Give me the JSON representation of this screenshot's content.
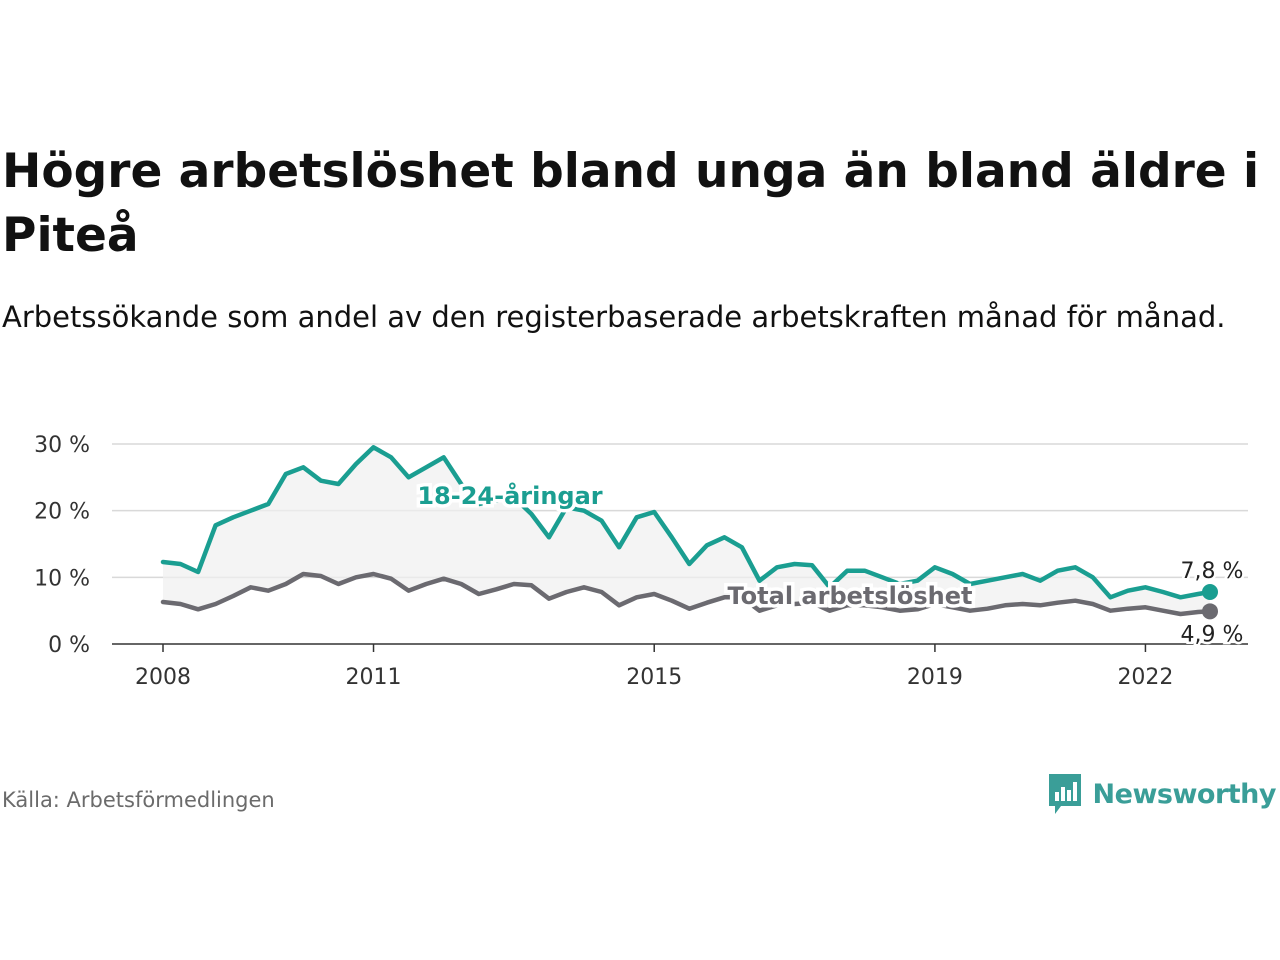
{
  "title": "Högre arbetslöshet bland unga än bland äldre i Piteå",
  "subtitle": "Arbetssökande som andel av den registerbaserade arbetskraften månad för månad.",
  "source": "Källa: Arbetsförmedlingen",
  "brand": {
    "name": "Newsworthy",
    "icon": "newsworthy-logo-icon",
    "color": "#3a9e98"
  },
  "chart_data": {
    "type": "line",
    "title": "Högre arbetslöshet bland unga än bland äldre i Piteå",
    "xlabel": "",
    "ylabel": "",
    "xlim": [
      2008.0,
      2023.5
    ],
    "ylim": [
      0,
      30
    ],
    "y_ticks": [
      0,
      10,
      20,
      30
    ],
    "y_tick_labels": [
      "0 %",
      "10 %",
      "20 %",
      "30 %"
    ],
    "x_ticks": [
      2008,
      2011,
      2015,
      2019,
      2022
    ],
    "x_tick_labels": [
      "2008",
      "2011",
      "2015",
      "2019",
      "2022"
    ],
    "grid": true,
    "legend": "inline labels",
    "shaded_area_between_series": true,
    "series": [
      {
        "name": "18-24-åringar",
        "color": "#1a9e91",
        "end_label": "7,8 %",
        "x": [
          2008.0,
          2008.25,
          2008.5,
          2008.75,
          2009.0,
          2009.25,
          2009.5,
          2009.75,
          2010.0,
          2010.25,
          2010.5,
          2010.75,
          2011.0,
          2011.25,
          2011.5,
          2011.75,
          2012.0,
          2012.25,
          2012.5,
          2012.75,
          2013.0,
          2013.25,
          2013.5,
          2013.75,
          2014.0,
          2014.25,
          2014.5,
          2014.75,
          2015.0,
          2015.25,
          2015.5,
          2015.75,
          2016.0,
          2016.25,
          2016.5,
          2016.75,
          2017.0,
          2017.25,
          2017.5,
          2017.75,
          2018.0,
          2018.25,
          2018.5,
          2018.75,
          2019.0,
          2019.25,
          2019.5,
          2019.75,
          2020.0,
          2020.25,
          2020.5,
          2020.75,
          2021.0,
          2021.25,
          2021.5,
          2021.75,
          2022.0,
          2022.25,
          2022.5,
          2022.75,
          2022.92
        ],
        "values": [
          12.3,
          12.0,
          10.8,
          17.8,
          19.0,
          20.0,
          21.0,
          25.5,
          26.5,
          24.5,
          24.0,
          27.0,
          29.5,
          28.0,
          25.0,
          26.5,
          28.0,
          24.0,
          21.0,
          21.5,
          22.0,
          19.5,
          16.0,
          20.5,
          20.0,
          18.5,
          14.5,
          19.0,
          19.8,
          16.0,
          12.0,
          14.8,
          16.0,
          14.5,
          9.5,
          11.5,
          12.0,
          11.8,
          8.5,
          11.0,
          11.0,
          10.0,
          9.0,
          9.5,
          11.5,
          10.5,
          9.0,
          9.5,
          10.0,
          10.5,
          9.5,
          11.0,
          11.5,
          10.0,
          7.0,
          8.0,
          8.5,
          7.8,
          7.0,
          7.5,
          7.8
        ]
      },
      {
        "name": "Total arbetslöshet",
        "color": "#6b6a70",
        "end_label": "4,9 %",
        "x": [
          2008.0,
          2008.25,
          2008.5,
          2008.75,
          2009.0,
          2009.25,
          2009.5,
          2009.75,
          2010.0,
          2010.25,
          2010.5,
          2010.75,
          2011.0,
          2011.25,
          2011.5,
          2011.75,
          2012.0,
          2012.25,
          2012.5,
          2012.75,
          2013.0,
          2013.25,
          2013.5,
          2013.75,
          2014.0,
          2014.25,
          2014.5,
          2014.75,
          2015.0,
          2015.25,
          2015.5,
          2015.75,
          2016.0,
          2016.25,
          2016.5,
          2016.75,
          2017.0,
          2017.25,
          2017.5,
          2017.75,
          2018.0,
          2018.25,
          2018.5,
          2018.75,
          2019.0,
          2019.25,
          2019.5,
          2019.75,
          2020.0,
          2020.25,
          2020.5,
          2020.75,
          2021.0,
          2021.25,
          2021.5,
          2021.75,
          2022.0,
          2022.25,
          2022.5,
          2022.75,
          2022.92
        ],
        "values": [
          6.3,
          6.0,
          5.2,
          6.0,
          7.2,
          8.5,
          8.0,
          9.0,
          10.5,
          10.2,
          9.0,
          10.0,
          10.5,
          9.8,
          8.0,
          9.0,
          9.8,
          9.0,
          7.5,
          8.2,
          9.0,
          8.8,
          6.8,
          7.8,
          8.5,
          7.8,
          5.8,
          7.0,
          7.5,
          6.5,
          5.3,
          6.2,
          7.0,
          7.0,
          5.0,
          5.8,
          6.0,
          6.2,
          5.0,
          5.8,
          5.8,
          5.5,
          5.0,
          5.2,
          6.0,
          5.5,
          5.0,
          5.3,
          5.8,
          6.0,
          5.8,
          6.2,
          6.5,
          6.0,
          5.0,
          5.3,
          5.5,
          5.0,
          4.5,
          4.8,
          4.9
        ]
      }
    ]
  }
}
